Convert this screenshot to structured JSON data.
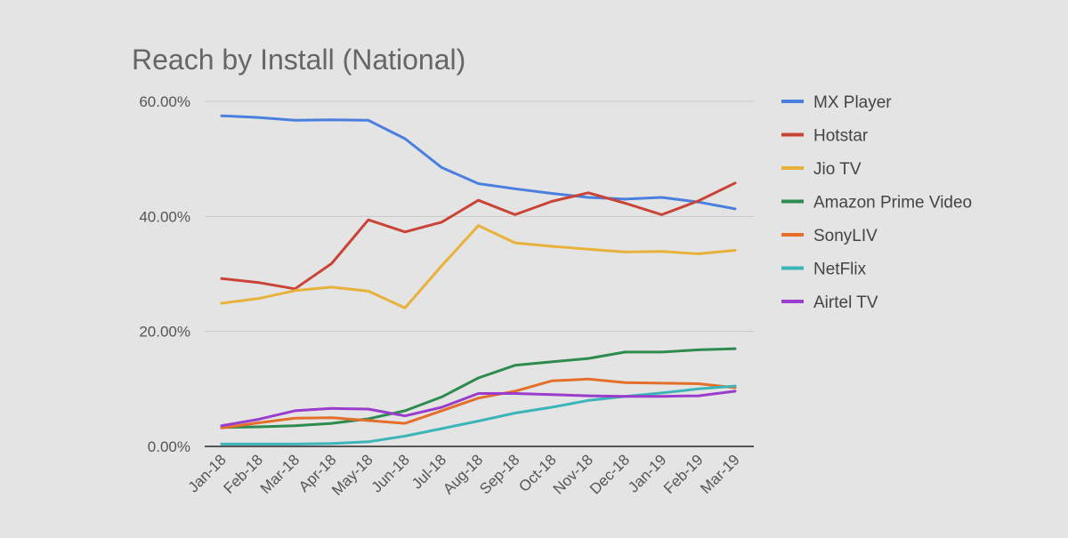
{
  "chart_data": {
    "type": "line",
    "title": "Reach by Install (National)",
    "xlabel": "",
    "ylabel": "",
    "categories": [
      "Jan-18",
      "Feb-18",
      "Mar-18",
      "Apr-18",
      "May-18",
      "Jun-18",
      "Jul-18",
      "Aug-18",
      "Sep-18",
      "Oct-18",
      "Nov-18",
      "Dec-18",
      "Jan-19",
      "Feb-19",
      "Mar-19"
    ],
    "ylim": [
      0,
      60
    ],
    "yticks": [
      "0.00%",
      "20.00%",
      "40.00%",
      "60.00%"
    ],
    "ytick_values": [
      0,
      20,
      40,
      60
    ],
    "grid": true,
    "legend_position": "right",
    "series": [
      {
        "name": "MX Player",
        "color": "#4a7fe0",
        "values": [
          57.5,
          57.2,
          56.7,
          56.8,
          56.7,
          53.5,
          48.5,
          45.7,
          44.8,
          44.0,
          43.3,
          43.0,
          43.3,
          42.5,
          41.3
        ]
      },
      {
        "name": "Hotstar",
        "color": "#c94436",
        "values": [
          29.2,
          28.5,
          27.4,
          31.8,
          39.4,
          37.3,
          39.0,
          42.8,
          40.3,
          42.6,
          44.1,
          42.3,
          40.3,
          42.7,
          45.8
        ]
      },
      {
        "name": "Jio TV",
        "color": "#e8b13a",
        "values": [
          24.9,
          25.7,
          27.1,
          27.7,
          27.0,
          24.1,
          31.4,
          38.4,
          35.4,
          34.8,
          34.3,
          33.8,
          33.9,
          33.5,
          34.1
        ]
      },
      {
        "name": "Amazon Prime Video",
        "color": "#2e8b4f",
        "values": [
          3.3,
          3.4,
          3.6,
          4.0,
          4.8,
          6.2,
          8.6,
          11.9,
          14.1,
          14.7,
          15.3,
          16.4,
          16.4,
          16.8,
          17.0
        ]
      },
      {
        "name": "SonyLIV",
        "color": "#e36f2a",
        "values": [
          3.2,
          4.1,
          4.9,
          5.0,
          4.5,
          4.0,
          6.2,
          8.4,
          9.6,
          11.4,
          11.7,
          11.1,
          11.0,
          10.9,
          10.2
        ]
      },
      {
        "name": "NetFlix",
        "color": "#3bb5b8",
        "values": [
          0.4,
          0.4,
          0.4,
          0.5,
          0.8,
          1.8,
          3.1,
          4.4,
          5.8,
          6.8,
          8.0,
          8.7,
          9.3,
          10.0,
          10.5
        ]
      },
      {
        "name": "Airtel TV",
        "color": "#9a3ccc",
        "values": [
          3.6,
          4.7,
          6.2,
          6.6,
          6.5,
          5.3,
          6.8,
          9.2,
          9.2,
          9.0,
          8.8,
          8.7,
          8.7,
          8.8,
          9.6
        ]
      }
    ]
  }
}
